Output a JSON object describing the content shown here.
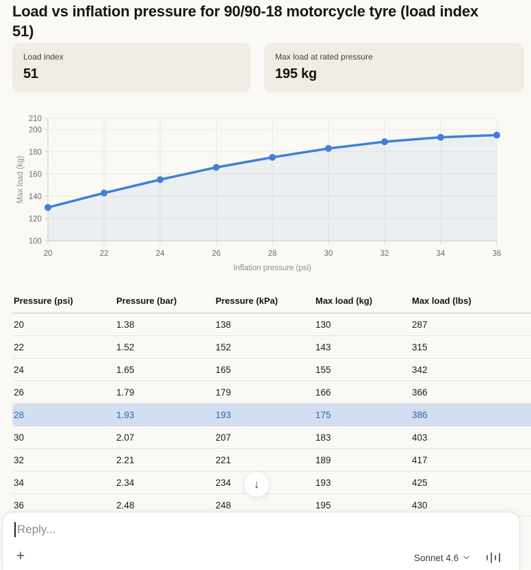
{
  "page": {
    "title": "Load vs inflation pressure for 90/90-18 motorcycle tyre (load index 51)"
  },
  "stats": [
    {
      "label": "Load index",
      "value": "51"
    },
    {
      "label": "Max load at rated pressure",
      "value": "195 kg"
    }
  ],
  "chart_data": {
    "type": "line",
    "x": [
      20,
      22,
      24,
      26,
      28,
      30,
      32,
      34,
      36
    ],
    "series": [
      {
        "name": "Max load (kg)",
        "values": [
          130,
          143,
          155,
          166,
          175,
          183,
          189,
          193,
          195
        ]
      }
    ],
    "xlabel": "Inflation pressure (psi)",
    "ylabel": "Max load (kg)",
    "xlim": [
      20,
      36
    ],
    "ylim": [
      100,
      210
    ],
    "yticks": [
      100,
      120,
      140,
      160,
      180,
      200,
      210
    ],
    "xticks": [
      20,
      22,
      24,
      26,
      28,
      30,
      32,
      34,
      36
    ],
    "grid": true,
    "legend": "none"
  },
  "table": {
    "headers": [
      "Pressure (psi)",
      "Pressure (bar)",
      "Pressure (kPa)",
      "Max load (kg)",
      "Max load (lbs)"
    ],
    "rows": [
      [
        "20",
        "1.38",
        "138",
        "130",
        "287"
      ],
      [
        "22",
        "1.52",
        "152",
        "143",
        "315"
      ],
      [
        "24",
        "1.65",
        "165",
        "155",
        "342"
      ],
      [
        "26",
        "1.79",
        "179",
        "166",
        "366"
      ],
      [
        "28",
        "1.93",
        "193",
        "175",
        "386"
      ],
      [
        "30",
        "2.07",
        "207",
        "183",
        "403"
      ],
      [
        "32",
        "2.21",
        "221",
        "189",
        "417"
      ],
      [
        "34",
        "2.34",
        "234",
        "193",
        "425"
      ],
      [
        "36",
        "2.48",
        "248",
        "195",
        "430"
      ]
    ],
    "highlighted_row_index": 4
  },
  "scroll_button": {
    "icon": "↓"
  },
  "composer": {
    "placeholder": "Reply...",
    "add_icon": "+",
    "model": "Sonnet 4.6"
  },
  "colors": {
    "accent_line": "#3e80d8",
    "area_fill": "rgba(62,128,216,0.08)",
    "highlight_row_bg": "#d3dff0",
    "highlight_row_text": "#3166ae",
    "grid_line": "#e9e8e4",
    "axis_line": "#cfcecb",
    "card_bg": "#f0eee4",
    "page_bg": "#faf9f5"
  }
}
